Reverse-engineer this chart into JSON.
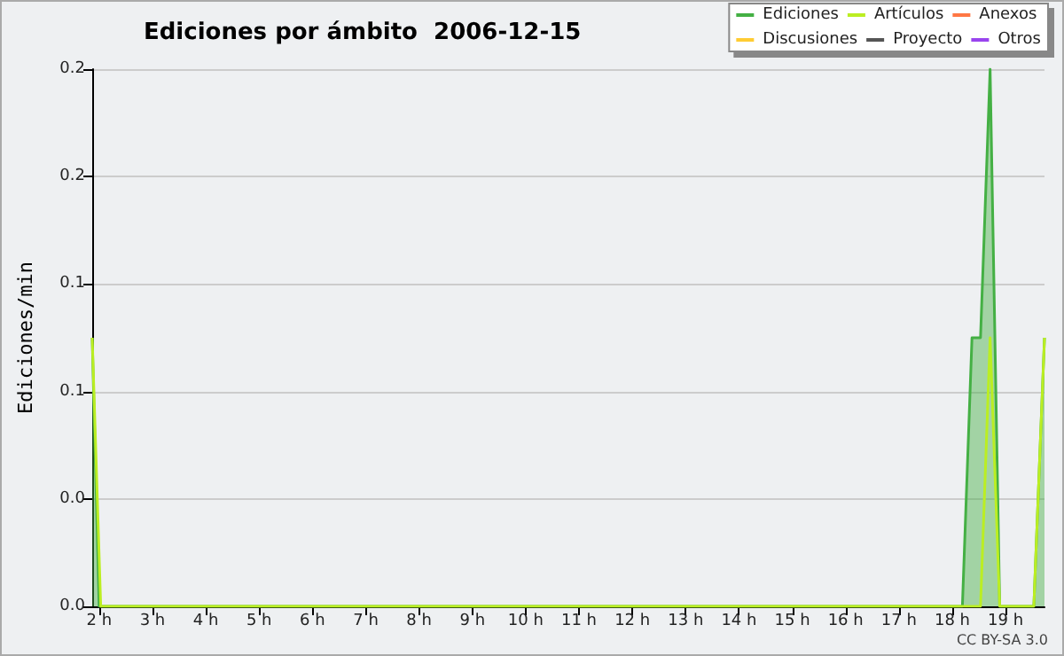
{
  "chart_data": {
    "type": "line",
    "title": "Ediciones por ámbito  2006-12-15",
    "ylabel": "Ediciones/min",
    "annotations": [
      "CC BY-SA 3.0"
    ],
    "xlim": [
      1.87,
      19.73
    ],
    "ylim": [
      0,
      0.25
    ],
    "xticks": [
      {
        "value": 2,
        "label": "2 h"
      },
      {
        "value": 3,
        "label": "3 h"
      },
      {
        "value": 4,
        "label": "4 h"
      },
      {
        "value": 5,
        "label": "5 h"
      },
      {
        "value": 6,
        "label": "6 h"
      },
      {
        "value": 7,
        "label": "7 h"
      },
      {
        "value": 8,
        "label": "8 h"
      },
      {
        "value": 9,
        "label": "9 h"
      },
      {
        "value": 10,
        "label": "10 h"
      },
      {
        "value": 11,
        "label": "11 h"
      },
      {
        "value": 12,
        "label": "12 h"
      },
      {
        "value": 13,
        "label": "13 h"
      },
      {
        "value": 14,
        "label": "14 h"
      },
      {
        "value": 15,
        "label": "15 h"
      },
      {
        "value": 16,
        "label": "16 h"
      },
      {
        "value": 17,
        "label": "17 h"
      },
      {
        "value": 18,
        "label": "18 h"
      },
      {
        "value": 19,
        "label": "19 h"
      }
    ],
    "yticks": [
      {
        "value": 0,
        "label": "0.0"
      },
      {
        "value": 0.05,
        "label": "0.0"
      },
      {
        "value": 0.1,
        "label": "0.1"
      },
      {
        "value": 0.15,
        "label": "0.1"
      },
      {
        "value": 0.2,
        "label": "0.2"
      },
      {
        "value": 0.25,
        "label": "0.2"
      }
    ],
    "grid": "y",
    "legend": "top right",
    "marker": "none",
    "series": [
      {
        "name": "Ediciones",
        "type": "area",
        "color": "#44b044",
        "x": [
          1.87,
          2.0,
          18.19,
          18.37,
          18.53,
          18.71,
          18.89,
          19.53,
          19.73
        ],
        "values": [
          0.125,
          0,
          0,
          0.125,
          0.125,
          0.25,
          0,
          0,
          0.125
        ]
      },
      {
        "name": "Artículos",
        "color": "#bbee22",
        "x": [
          1.87,
          2.03,
          18.53,
          18.71,
          18.89,
          19.53,
          19.73
        ],
        "values": [
          0.125,
          0,
          0,
          0.125,
          0,
          0,
          0.125
        ]
      },
      {
        "name": "Anexos",
        "color": "#ff7744"
      },
      {
        "name": "Discusiones",
        "color": "#ffcc33"
      },
      {
        "name": "Proyecto",
        "color": "#555555"
      },
      {
        "name": "Otros",
        "color": "#9944ee"
      }
    ]
  }
}
